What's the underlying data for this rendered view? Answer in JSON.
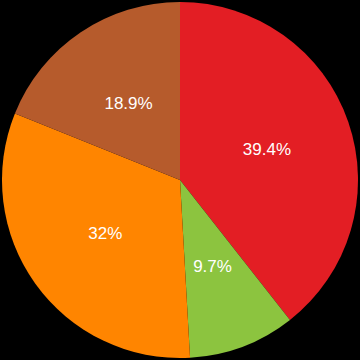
{
  "chart_data": {
    "type": "pie",
    "values": [
      39.4,
      9.7,
      32,
      18.9
    ],
    "value_labels": [
      "39.4%",
      "9.7%",
      "32%",
      "18.9%"
    ],
    "colors": [
      "#e31e24",
      "#8cc43f",
      "#ff8500",
      "#b65b2c"
    ],
    "data_labels": true
  }
}
